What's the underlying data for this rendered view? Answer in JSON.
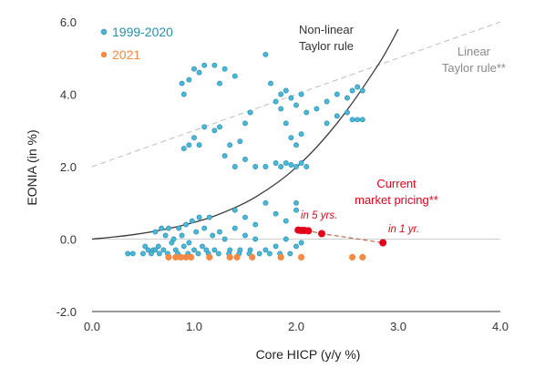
{
  "chart_data": {
    "type": "scatter",
    "xlabel": "Core HICP (y/y %)",
    "ylabel": "EONIA (in %)",
    "xlim": [
      0,
      4
    ],
    "ylim": [
      -2,
      6
    ],
    "x_ticks": [
      "0.0",
      "1.0",
      "2.0",
      "3.0",
      "4.0"
    ],
    "y_ticks": [
      "-2.0",
      "0.0",
      "2.0",
      "4.0",
      "6.0"
    ],
    "x_tick_values": [
      0,
      1,
      2,
      3,
      4
    ],
    "y_tick_values": [
      -2,
      0,
      2,
      4,
      6
    ],
    "zero_gridline": true,
    "legend_position": "top-left",
    "colors": {
      "hist": "#4bb8d8",
      "hist_edge": "#2f8fb0",
      "legend_hist": "#2a8fa8",
      "y2021": "#f28a45",
      "nonlinear": "#3a3a3a",
      "linear": "#bdbdbd",
      "pricing": "#e3001b",
      "axis": "#333333",
      "zeroline": "#cfcfcf",
      "grey_text": "#8a8a8a"
    },
    "series": [
      {
        "name": "1999-2020",
        "kind": "scatter",
        "points": [
          [
            0.35,
            -0.4
          ],
          [
            0.4,
            -0.4
          ],
          [
            0.5,
            -0.4
          ],
          [
            0.52,
            -0.2
          ],
          [
            0.55,
            -0.3
          ],
          [
            0.58,
            -0.4
          ],
          [
            0.6,
            -0.3
          ],
          [
            0.62,
            0.2
          ],
          [
            0.65,
            -0.2
          ],
          [
            0.68,
            0.3
          ],
          [
            0.7,
            -0.3
          ],
          [
            0.72,
            0.1
          ],
          [
            0.75,
            0.3
          ],
          [
            0.78,
            -0.1
          ],
          [
            0.8,
            0.0
          ],
          [
            0.82,
            -0.3
          ],
          [
            0.85,
            0.3
          ],
          [
            0.88,
            0.1
          ],
          [
            0.9,
            -0.2
          ],
          [
            0.92,
            0.4
          ],
          [
            0.95,
            -0.1
          ],
          [
            0.98,
            0.5
          ],
          [
            1.0,
            -0.3
          ],
          [
            1.02,
            0.2
          ],
          [
            1.05,
            0.6
          ],
          [
            1.08,
            -0.2
          ],
          [
            1.1,
            0.3
          ],
          [
            1.12,
            -0.3
          ],
          [
            1.15,
            0.6
          ],
          [
            1.18,
            0.1
          ],
          [
            1.2,
            -0.3
          ],
          [
            1.25,
            0.2
          ],
          [
            1.3,
            0.0
          ],
          [
            1.35,
            -0.3
          ],
          [
            1.4,
            0.3
          ],
          [
            1.45,
            -0.3
          ],
          [
            1.5,
            0.1
          ],
          [
            1.55,
            -0.3
          ],
          [
            1.6,
            0.0
          ],
          [
            1.7,
            -0.3
          ],
          [
            1.8,
            -0.2
          ],
          [
            1.9,
            0.0
          ],
          [
            2.0,
            -0.2
          ],
          [
            2.05,
            -0.1
          ],
          [
            0.62,
            -0.3
          ],
          [
            0.66,
            -0.4
          ],
          [
            0.74,
            -0.4
          ],
          [
            0.84,
            -0.4
          ],
          [
            0.94,
            -0.4
          ],
          [
            1.04,
            -0.4
          ],
          [
            1.14,
            -0.4
          ],
          [
            1.24,
            -0.4
          ],
          [
            1.34,
            -0.4
          ],
          [
            1.44,
            -0.4
          ],
          [
            1.54,
            -0.4
          ],
          [
            1.64,
            -0.4
          ],
          [
            1.74,
            -0.4
          ],
          [
            1.84,
            -0.4
          ],
          [
            1.94,
            -0.4
          ],
          [
            0.9,
            2.5
          ],
          [
            0.95,
            2.6
          ],
          [
            1.0,
            2.8
          ],
          [
            1.05,
            2.6
          ],
          [
            1.1,
            3.1
          ],
          [
            1.2,
            3.0
          ],
          [
            1.25,
            3.1
          ],
          [
            1.3,
            2.3
          ],
          [
            1.35,
            2.6
          ],
          [
            1.4,
            2.0
          ],
          [
            1.45,
            2.7
          ],
          [
            1.5,
            2.2
          ],
          [
            1.55,
            3.5
          ],
          [
            1.6,
            2.0
          ],
          [
            1.7,
            2.0
          ],
          [
            1.8,
            2.1
          ],
          [
            1.85,
            2.0
          ],
          [
            1.9,
            2.1
          ],
          [
            1.95,
            2.05
          ],
          [
            2.0,
            2.0
          ],
          [
            2.05,
            2.1
          ],
          [
            2.1,
            2.0
          ],
          [
            1.95,
            2.8
          ],
          [
            2.0,
            2.6
          ],
          [
            1.9,
            3.2
          ],
          [
            1.85,
            3.6
          ],
          [
            2.05,
            2.9
          ],
          [
            0.88,
            4.3
          ],
          [
            0.9,
            4.0
          ],
          [
            0.95,
            4.4
          ],
          [
            1.0,
            4.7
          ],
          [
            1.05,
            4.6
          ],
          [
            1.1,
            4.8
          ],
          [
            1.2,
            4.8
          ],
          [
            1.25,
            4.3
          ],
          [
            1.3,
            4.7
          ],
          [
            1.4,
            4.5
          ],
          [
            1.5,
            3.2
          ],
          [
            1.55,
            3.5
          ],
          [
            1.7,
            5.1
          ],
          [
            1.75,
            4.3
          ],
          [
            1.8,
            3.8
          ],
          [
            1.85,
            4.0
          ],
          [
            1.9,
            4.1
          ],
          [
            1.95,
            3.9
          ],
          [
            2.0,
            3.7
          ],
          [
            2.05,
            4.0
          ],
          [
            2.1,
            3.5
          ],
          [
            2.2,
            3.6
          ],
          [
            2.3,
            3.8
          ],
          [
            2.4,
            4.0
          ],
          [
            2.5,
            3.9
          ],
          [
            2.55,
            4.1
          ],
          [
            2.6,
            4.2
          ],
          [
            2.65,
            4.1
          ],
          [
            2.5,
            3.5
          ],
          [
            2.55,
            3.3
          ],
          [
            2.6,
            3.3
          ],
          [
            2.65,
            3.3
          ],
          [
            2.4,
            3.4
          ],
          [
            2.3,
            3.2
          ],
          [
            2.0,
            1.0
          ],
          [
            2.0,
            0.8
          ],
          [
            1.9,
            0.5
          ],
          [
            1.8,
            0.7
          ],
          [
            1.7,
            1.0
          ],
          [
            1.6,
            0.4
          ],
          [
            1.5,
            0.6
          ],
          [
            1.4,
            0.8
          ]
        ]
      },
      {
        "name": "2021",
        "kind": "scatter",
        "points": [
          [
            0.75,
            -0.5
          ],
          [
            0.82,
            -0.5
          ],
          [
            0.87,
            -0.5
          ],
          [
            0.92,
            -0.5
          ],
          [
            0.97,
            -0.5
          ],
          [
            1.15,
            -0.5
          ],
          [
            1.35,
            -0.5
          ],
          [
            1.42,
            -0.5
          ],
          [
            1.57,
            -0.5
          ],
          [
            1.85,
            -0.5
          ],
          [
            2.05,
            -0.5
          ],
          [
            2.55,
            -0.5
          ],
          [
            2.65,
            -0.5
          ]
        ]
      },
      {
        "name": "Non-linear Taylor rule",
        "kind": "line",
        "points": [
          [
            0.0,
            0.0
          ],
          [
            0.4,
            0.12
          ],
          [
            0.8,
            0.32
          ],
          [
            1.2,
            0.64
          ],
          [
            1.6,
            1.16
          ],
          [
            2.0,
            1.98
          ],
          [
            2.4,
            3.2
          ],
          [
            2.8,
            4.8
          ],
          [
            3.0,
            5.8
          ]
        ]
      },
      {
        "name": "Linear Taylor rule**",
        "kind": "dashed-line",
        "points": [
          [
            0.0,
            2.0
          ],
          [
            4.0,
            6.0
          ]
        ]
      },
      {
        "name": "Current market pricing**",
        "kind": "dashed-line-markers",
        "points": [
          [
            2.02,
            0.25
          ],
          [
            2.05,
            0.24
          ],
          [
            2.08,
            0.24
          ],
          [
            2.12,
            0.23
          ],
          [
            2.25,
            0.15
          ],
          [
            2.85,
            -0.1
          ]
        ]
      }
    ],
    "legend": [
      {
        "label": "1999-2020",
        "series": "hist"
      },
      {
        "label": "2021",
        "series": "y2021"
      }
    ],
    "annotations": {
      "nonlinear_line1": "Non-linear",
      "nonlinear_line2": "Taylor rule",
      "linear_line1": "Linear",
      "linear_line2": "Taylor rule**",
      "pricing_line1": "Current",
      "pricing_line2": "market pricing**",
      "in5": "in 5 yrs.",
      "in1": "in 1 yr."
    }
  }
}
